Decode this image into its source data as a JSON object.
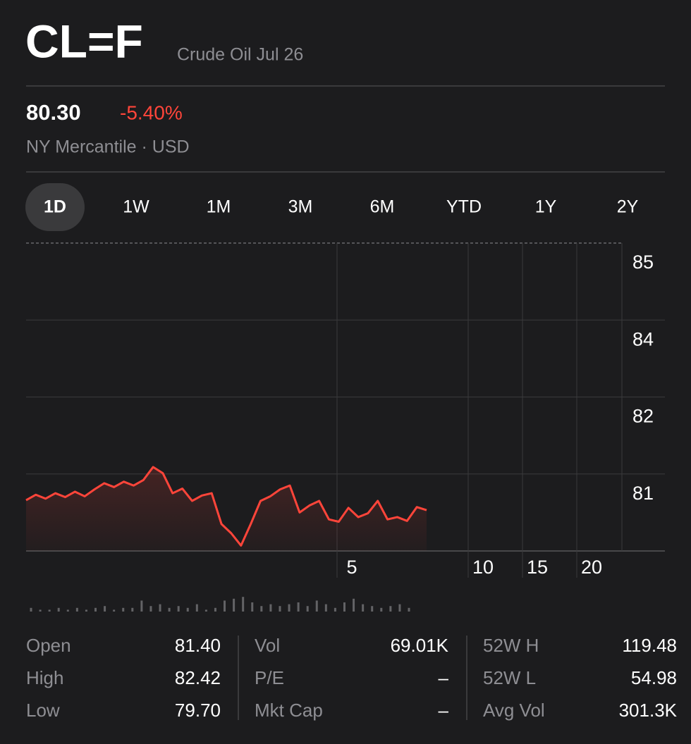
{
  "header": {
    "symbol": "CL=F",
    "name": "Crude Oil Jul 26"
  },
  "quote": {
    "price": "80.30",
    "change": "-5.40%",
    "exchange": "NY Mercantile · USD"
  },
  "tabs": {
    "items": [
      "1D",
      "1W",
      "1M",
      "3M",
      "6M",
      "YTD",
      "1Y",
      "2Y"
    ],
    "selected": "1D"
  },
  "chart_data": {
    "type": "line",
    "color": "#ff453a",
    "values": [
      80.66,
      80.73,
      80.68,
      80.75,
      80.7,
      80.77,
      80.71,
      80.8,
      80.88,
      80.83,
      80.9,
      80.85,
      80.92,
      81.09,
      81.01,
      80.75,
      80.81,
      80.65,
      80.72,
      80.75,
      80.35,
      80.23,
      80.07,
      80.35,
      80.65,
      80.71,
      80.8,
      80.85,
      80.5,
      80.59,
      80.65,
      80.41,
      80.38,
      80.56,
      80.44,
      80.49,
      80.65,
      80.41,
      80.44,
      80.39,
      80.57,
      80.53
    ],
    "ylim": [
      80,
      85
    ],
    "yticks": [
      85,
      84,
      82,
      81
    ],
    "xticks": [
      5,
      10,
      15,
      20
    ],
    "volume": [
      2,
      1,
      1,
      2,
      1,
      2,
      1,
      2,
      3,
      1,
      2,
      2,
      6,
      3,
      4,
      2,
      3,
      2,
      4,
      1,
      2,
      6,
      7,
      8,
      5,
      3,
      4,
      3,
      4,
      5,
      3,
      6,
      4,
      2,
      5,
      7,
      4,
      3,
      2,
      3,
      4,
      2
    ]
  },
  "stats": {
    "columns": [
      {
        "rows": [
          {
            "label": "Open",
            "value": "81.40"
          },
          {
            "label": "High",
            "value": "82.42"
          },
          {
            "label": "Low",
            "value": "79.70"
          }
        ]
      },
      {
        "rows": [
          {
            "label": "Vol",
            "value": "69.01K"
          },
          {
            "label": "P/E",
            "value": "–"
          },
          {
            "label": "Mkt Cap",
            "value": "–"
          }
        ]
      },
      {
        "rows": [
          {
            "label": "52W H",
            "value": "119.48"
          },
          {
            "label": "52W L",
            "value": "54.98"
          },
          {
            "label": "Avg Vol",
            "value": "301.3K"
          }
        ]
      }
    ]
  }
}
